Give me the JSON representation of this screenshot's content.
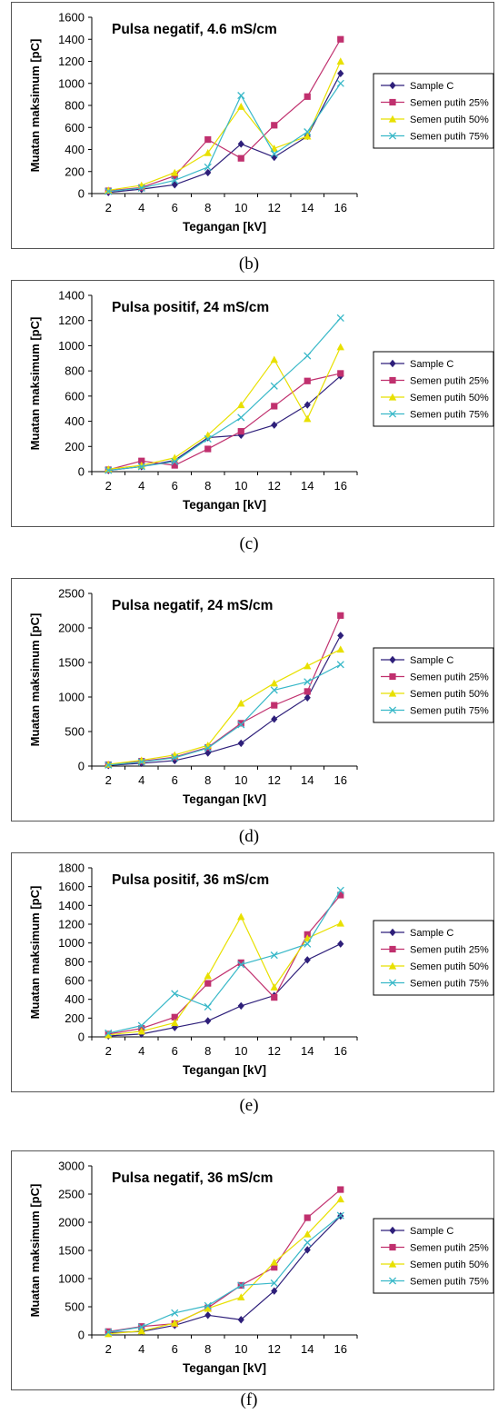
{
  "chart_data": [
    {
      "type": "line",
      "title": "Pulsa negatif, 4.6 mS/cm",
      "xlabel": "Tegangan [kV]",
      "ylabel": "Muatan maksimum [pC]",
      "caption": "(b)",
      "x": [
        2,
        4,
        6,
        8,
        10,
        12,
        14,
        16
      ],
      "ylim": [
        0,
        1600
      ],
      "yticks": [
        0,
        200,
        400,
        600,
        800,
        1000,
        1200,
        1400,
        1600
      ],
      "legend_position": "right",
      "series": [
        {
          "name": "Sample C",
          "color": "#2e1f7a",
          "marker": "diamond",
          "values": [
            10,
            40,
            80,
            190,
            450,
            330,
            520,
            1090
          ]
        },
        {
          "name": "Semen putih 25%",
          "color": "#c0306e",
          "marker": "square",
          "values": [
            25,
            55,
            160,
            490,
            320,
            620,
            880,
            1400
          ]
        },
        {
          "name": "Semen putih 50%",
          "color": "#e8e000",
          "marker": "triangle",
          "values": [
            30,
            75,
            190,
            370,
            790,
            410,
            520,
            1200
          ]
        },
        {
          "name": "Semen putih 75%",
          "color": "#38b8c8",
          "marker": "x",
          "values": [
            20,
            50,
            120,
            240,
            890,
            360,
            560,
            1000
          ]
        }
      ]
    },
    {
      "type": "line",
      "title": "Pulsa positif, 24 mS/cm",
      "xlabel": "Tegangan [kV]",
      "ylabel": "Muatan maksimum [pC]",
      "caption": "(c)",
      "x": [
        2,
        4,
        6,
        8,
        10,
        12,
        14,
        16
      ],
      "ylim": [
        0,
        1400
      ],
      "yticks": [
        0,
        200,
        400,
        600,
        800,
        1000,
        1200,
        1400
      ],
      "legend_position": "right",
      "series": [
        {
          "name": "Sample C",
          "color": "#2e1f7a",
          "marker": "diamond",
          "values": [
            10,
            40,
            90,
            270,
            290,
            370,
            530,
            760
          ]
        },
        {
          "name": "Semen putih 25%",
          "color": "#c0306e",
          "marker": "square",
          "values": [
            15,
            85,
            50,
            180,
            320,
            520,
            720,
            780
          ]
        },
        {
          "name": "Semen putih 50%",
          "color": "#e8e000",
          "marker": "triangle",
          "values": [
            20,
            50,
            110,
            290,
            530,
            890,
            420,
            990
          ]
        },
        {
          "name": "Semen putih 75%",
          "color": "#38b8c8",
          "marker": "x",
          "values": [
            10,
            40,
            80,
            260,
            430,
            680,
            920,
            1220
          ]
        }
      ]
    },
    {
      "type": "line",
      "title": "Pulsa negatif, 24 mS/cm",
      "xlabel": "Tegangan [kV]",
      "ylabel": "Muatan maksimum [pC]",
      "caption": "(d)",
      "x": [
        2,
        4,
        6,
        8,
        10,
        12,
        14,
        16
      ],
      "ylim": [
        0,
        2500
      ],
      "yticks": [
        0,
        500,
        1000,
        1500,
        2000,
        2500
      ],
      "legend_position": "right",
      "series": [
        {
          "name": "Sample C",
          "color": "#2e1f7a",
          "marker": "diamond",
          "values": [
            10,
            40,
            80,
            190,
            330,
            680,
            990,
            1890
          ]
        },
        {
          "name": "Semen putih 25%",
          "color": "#c0306e",
          "marker": "square",
          "values": [
            20,
            70,
            130,
            270,
            620,
            880,
            1080,
            2180
          ]
        },
        {
          "name": "Semen putih 50%",
          "color": "#e8e000",
          "marker": "triangle",
          "values": [
            25,
            85,
            160,
            300,
            910,
            1200,
            1450,
            1690
          ]
        },
        {
          "name": "Semen putih 75%",
          "color": "#38b8c8",
          "marker": "x",
          "values": [
            15,
            60,
            120,
            260,
            600,
            1100,
            1220,
            1470
          ]
        }
      ]
    },
    {
      "type": "line",
      "title": "Pulsa positif, 36 mS/cm",
      "xlabel": "Tegangan [kV]",
      "ylabel": "Muatan maksimum [pC]",
      "caption": "(e)",
      "x": [
        2,
        4,
        6,
        8,
        10,
        12,
        14,
        16
      ],
      "ylim": [
        0,
        1800
      ],
      "yticks": [
        0,
        200,
        400,
        600,
        800,
        1000,
        1200,
        1400,
        1600,
        1800
      ],
      "legend_position": "right",
      "series": [
        {
          "name": "Sample C",
          "color": "#2e1f7a",
          "marker": "diamond",
          "values": [
            10,
            30,
            100,
            170,
            330,
            440,
            820,
            990
          ]
        },
        {
          "name": "Semen putih 25%",
          "color": "#c0306e",
          "marker": "square",
          "values": [
            30,
            90,
            210,
            570,
            790,
            420,
            1090,
            1510
          ]
        },
        {
          "name": "Semen putih 50%",
          "color": "#e8e000",
          "marker": "triangle",
          "values": [
            20,
            60,
            150,
            650,
            1280,
            530,
            1050,
            1210
          ]
        },
        {
          "name": "Semen putih 75%",
          "color": "#38b8c8",
          "marker": "x",
          "values": [
            40,
            120,
            460,
            320,
            770,
            870,
            990,
            1560
          ]
        }
      ]
    },
    {
      "type": "line",
      "title": "Pulsa negatif, 36 mS/cm",
      "xlabel": "Tegangan [kV]",
      "ylabel": "Muatan maksimum [pC]",
      "caption": "(f)",
      "x": [
        2,
        4,
        6,
        8,
        10,
        12,
        14,
        16
      ],
      "ylim": [
        0,
        3000
      ],
      "yticks": [
        0,
        500,
        1000,
        1500,
        2000,
        2500,
        3000
      ],
      "legend_position": "right",
      "series": [
        {
          "name": "Sample C",
          "color": "#2e1f7a",
          "marker": "diamond",
          "values": [
            40,
            60,
            170,
            350,
            270,
            780,
            1510,
            2110
          ]
        },
        {
          "name": "Semen putih 25%",
          "color": "#c0306e",
          "marker": "square",
          "values": [
            60,
            150,
            200,
            480,
            880,
            1200,
            2080,
            2580
          ]
        },
        {
          "name": "Semen putih 50%",
          "color": "#e8e000",
          "marker": "triangle",
          "values": [
            20,
            70,
            210,
            470,
            670,
            1290,
            1790,
            2410
          ]
        },
        {
          "name": "Semen putih 75%",
          "color": "#38b8c8",
          "marker": "x",
          "values": [
            50,
            140,
            390,
            520,
            880,
            920,
            1640,
            2120
          ]
        }
      ]
    }
  ]
}
